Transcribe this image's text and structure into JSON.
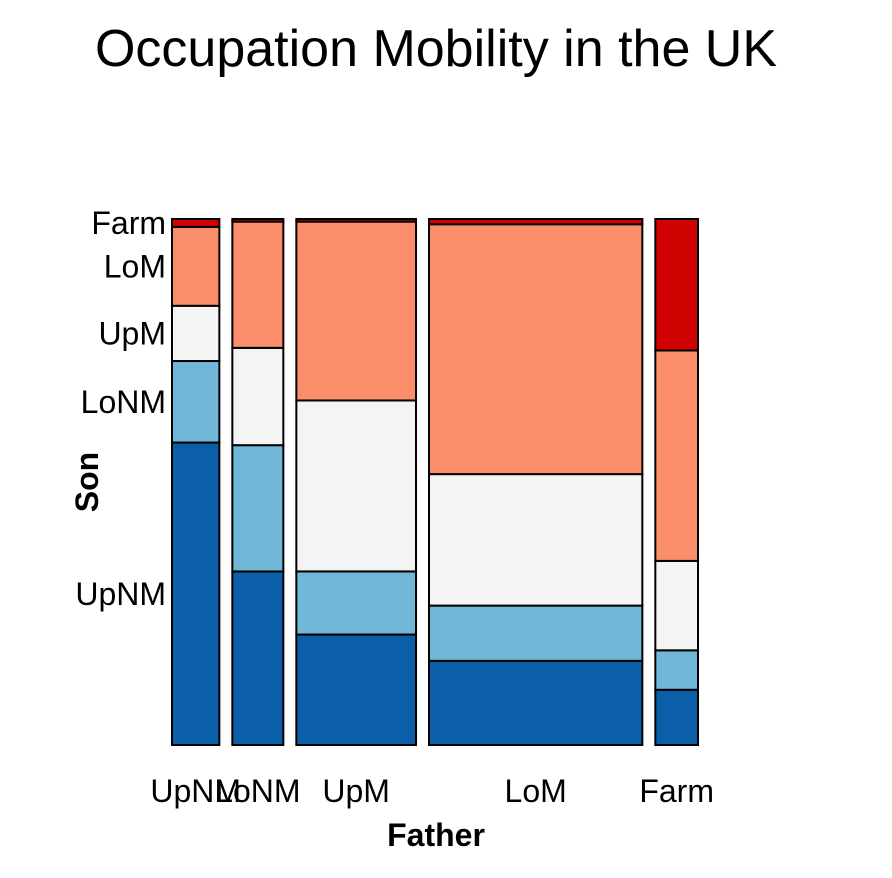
{
  "chart_data": {
    "type": "mosaic",
    "title": "Occupation Mobility in the UK",
    "xlabel": "Father",
    "ylabel": "Son",
    "x_categories": [
      "UpNM",
      "LoNM",
      "UpM",
      "LoM",
      "Farm"
    ],
    "y_categories": [
      "UpNM",
      "LoNM",
      "UpM",
      "LoM",
      "Farm"
    ],
    "column_shares": [
      0.091,
      0.098,
      0.23,
      0.41,
      0.082
    ],
    "proportions": [
      [
        0.575,
        0.155,
        0.105,
        0.15,
        0.015
      ],
      [
        0.33,
        0.24,
        0.185,
        0.24,
        0.005
      ],
      [
        0.21,
        0.12,
        0.325,
        0.34,
        0.005
      ],
      [
        0.16,
        0.105,
        0.25,
        0.475,
        0.01
      ],
      [
        0.105,
        0.075,
        0.17,
        0.4,
        0.25
      ]
    ],
    "colors": {
      "UpNM": "#0a5fa8",
      "LoNM": "#71b8d8",
      "UpM": "#f4f4f4",
      "LoM": "#fb8e6a",
      "Farm": "#d10202"
    },
    "legend": "none",
    "grid": false
  }
}
